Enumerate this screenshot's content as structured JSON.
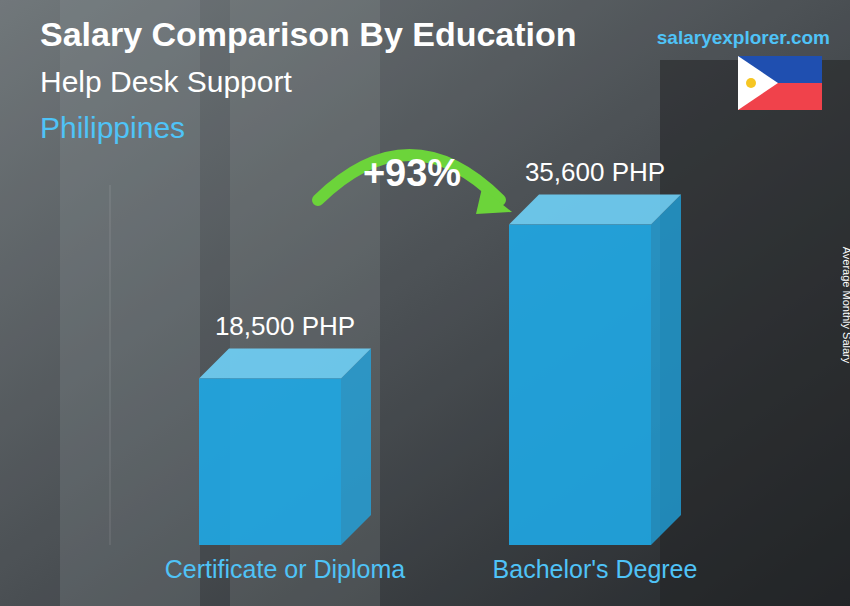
{
  "chart_data": {
    "type": "bar",
    "title": "Salary Comparison By Education",
    "subtitle": "Help Desk Support",
    "region": "Philippines",
    "source": "salaryexplorer.com",
    "annotation": "+93%",
    "ylabel": "Average Monthly Salary",
    "categories": [
      "Certificate or Diploma",
      "Bachelor's Degree"
    ],
    "values": [
      18500,
      35600
    ],
    "value_labels": [
      "18,500 PHP",
      "35,600 PHP"
    ],
    "color": "#1fa8e6",
    "ylim": [
      0,
      40000
    ],
    "data_labels": true,
    "tick_labels": false,
    "grid": false
  }
}
